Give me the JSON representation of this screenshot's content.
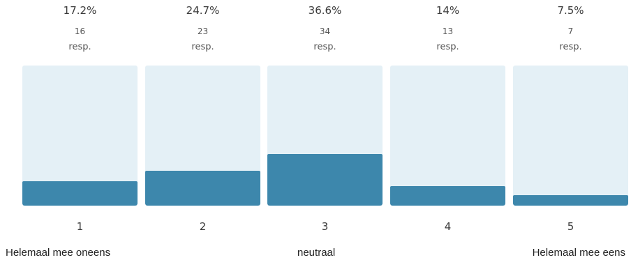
{
  "chart_data": {
    "type": "bar",
    "categories": [
      "1",
      "2",
      "3",
      "4",
      "5"
    ],
    "percent_labels": [
      "17.2%",
      "24.7%",
      "36.6%",
      "14%",
      "7.5%"
    ],
    "values": [
      17.2,
      24.7,
      36.6,
      14,
      7.5
    ],
    "counts": [
      "16",
      "23",
      "34",
      "13",
      "7"
    ],
    "count_unit": "resp.",
    "ylim": [
      0,
      100
    ],
    "scale_labels": {
      "left": "Helemaal mee oneens",
      "middle": "neutraal",
      "right": "Helemaal mee eens"
    },
    "colors": {
      "bar": "#3d87ac",
      "track": "#e4f0f6"
    }
  }
}
